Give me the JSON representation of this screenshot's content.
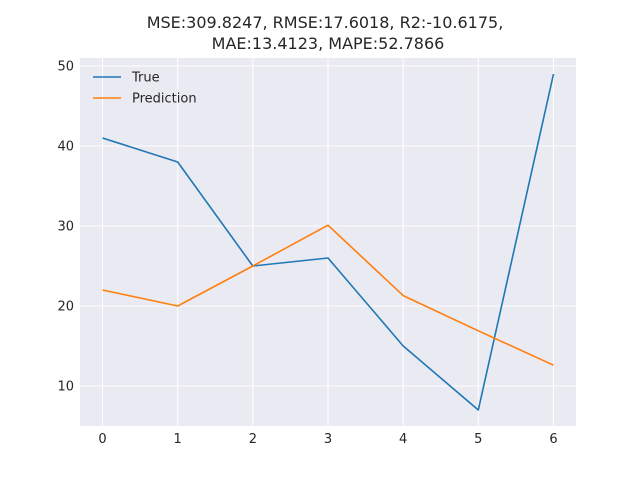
{
  "chart_data": {
    "type": "line",
    "title_lines": [
      "MSE:309.8247, RMSE:17.6018, R2:-10.6175,",
      "MAE:13.4123, MAPE:52.7866"
    ],
    "xlabel": "",
    "ylabel": "",
    "x": [
      0,
      1,
      2,
      3,
      4,
      5,
      6
    ],
    "series": [
      {
        "name": "True",
        "color": "#1f77b4",
        "values": [
          41,
          38,
          25,
          26,
          15,
          7,
          49
        ]
      },
      {
        "name": "Prediction",
        "color": "#ff7f0e",
        "values": [
          22,
          20,
          25,
          30.1,
          21.3,
          16.9,
          12.6
        ]
      }
    ],
    "xlim": [
      -0.3,
      6.3
    ],
    "ylim": [
      5,
      51
    ],
    "x_ticks": [
      0,
      1,
      2,
      3,
      4,
      5,
      6
    ],
    "y_ticks": [
      10,
      20,
      30,
      40,
      50
    ],
    "grid": true,
    "legend_position": "top-left",
    "background": "#eaeaf2",
    "grid_color": "#ffffff"
  }
}
